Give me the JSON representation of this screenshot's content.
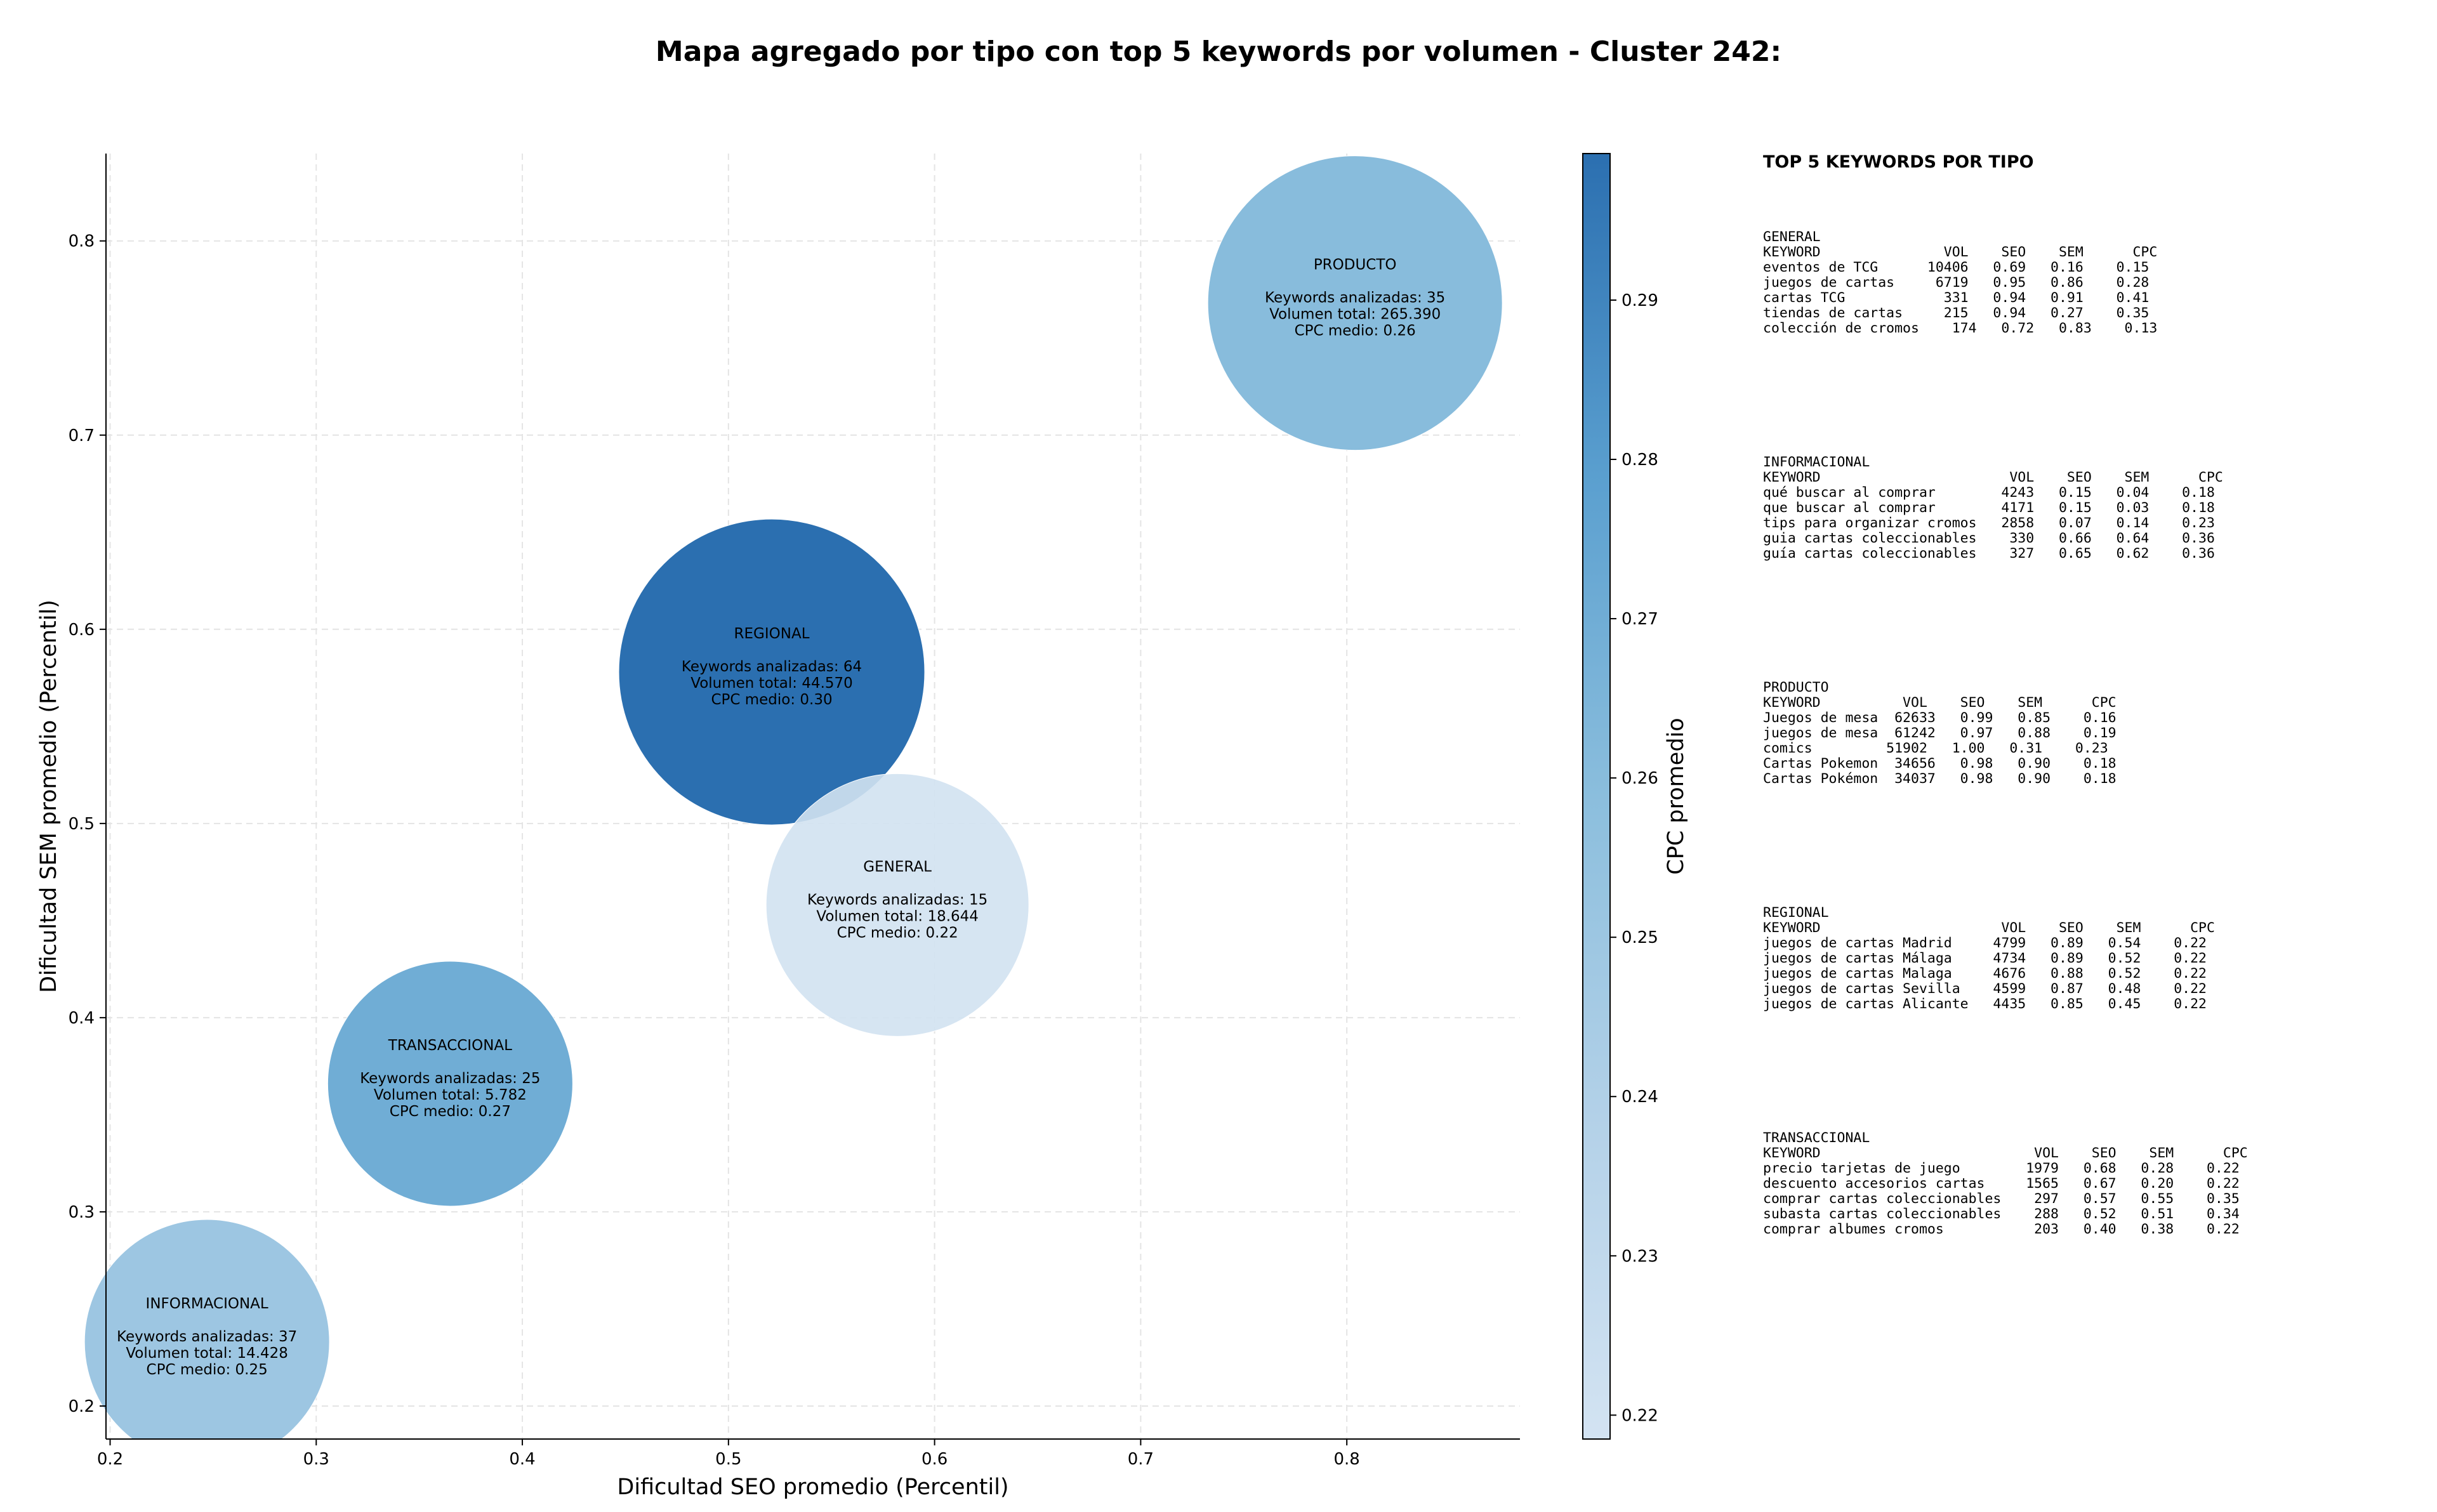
{
  "chart_data": {
    "type": "scatter",
    "title": "Mapa agregado por tipo con top 5 keywords por volumen - Cluster 242:",
    "xlabel": "Dificultad SEO promedio (Percentil)",
    "ylabel": "Dificultad SEM promedio (Percentil)",
    "xlim": [
      0.198,
      0.884
    ],
    "ylim": [
      0.183,
      0.845
    ],
    "xticks": [
      0.2,
      0.3,
      0.4,
      0.5,
      0.6,
      0.7,
      0.8
    ],
    "yticks": [
      0.2,
      0.3,
      0.4,
      0.5,
      0.6,
      0.7,
      0.8
    ],
    "grid": true,
    "colorbar": {
      "label": "CPC promedio",
      "range": [
        0.2185,
        0.2992
      ],
      "ticks": [
        0.22,
        0.23,
        0.24,
        0.25,
        0.26,
        0.27,
        0.28,
        0.29
      ]
    },
    "points": [
      {
        "name": "PRODUCTO",
        "x": 0.804,
        "y": 0.768,
        "cpc": 0.26,
        "lines": [
          "Keywords analizadas: 35",
          "Volumen total: 265.390",
          "CPC medio: 0.26"
        ]
      },
      {
        "name": "REGIONAL",
        "x": 0.521,
        "y": 0.578,
        "cpc": 0.3,
        "lines": [
          "Keywords analizadas: 64",
          "Volumen total: 44.570",
          "CPC medio: 0.30"
        ]
      },
      {
        "name": "GENERAL",
        "x": 0.582,
        "y": 0.458,
        "cpc": 0.22,
        "lines": [
          "Keywords analizadas: 15",
          "Volumen total: 18.644",
          "CPC medio: 0.22"
        ]
      },
      {
        "name": "TRANSACCIONAL",
        "x": 0.365,
        "y": 0.366,
        "cpc": 0.27,
        "lines": [
          "Keywords analizadas: 25",
          "Volumen total: 5.782",
          "CPC medio: 0.27"
        ]
      },
      {
        "name": "INFORMACIONAL",
        "x": 0.247,
        "y": 0.233,
        "cpc": 0.25,
        "lines": [
          "Keywords analizadas: 37",
          "Volumen total: 14.428",
          "CPC medio: 0.25"
        ]
      }
    ]
  },
  "panel": {
    "title": "TOP 5 KEYWORDS POR TIPO",
    "blocks": [
      {
        "name": "GENERAL",
        "kw_width": 18,
        "header": [
          "KEYWORD",
          "VOL",
          "SEO",
          "SEM",
          "CPC"
        ],
        "rows": [
          [
            "eventos de TCG",
            "10406",
            "0.69",
            "0.16",
            "0.15"
          ],
          [
            "juegos de cartas",
            "6719",
            "0.95",
            "0.86",
            "0.28"
          ],
          [
            "cartas TCG",
            "331",
            "0.94",
            "0.91",
            "0.41"
          ],
          [
            "tiendas de cartas",
            "215",
            "0.94",
            "0.27",
            "0.35"
          ],
          [
            "colección de cromos",
            "174",
            "0.72",
            "0.83",
            "0.13"
          ]
        ]
      },
      {
        "name": "INFORMACIONAL",
        "kw_width": 26,
        "header": [
          "KEYWORD",
          "VOL",
          "SEO",
          "SEM",
          "CPC"
        ],
        "rows": [
          [
            "qué buscar al comprar",
            "4243",
            "0.15",
            "0.04",
            "0.18"
          ],
          [
            "que buscar al comprar",
            "4171",
            "0.15",
            "0.03",
            "0.18"
          ],
          [
            "tips para organizar cromos",
            "2858",
            "0.07",
            "0.14",
            "0.23"
          ],
          [
            "guia cartas coleccionables",
            "330",
            "0.66",
            "0.64",
            "0.36"
          ],
          [
            "guía cartas coleccionables",
            "327",
            "0.65",
            "0.62",
            "0.36"
          ]
        ]
      },
      {
        "name": "PRODUCTO",
        "kw_width": 13,
        "header": [
          "KEYWORD",
          "VOL",
          "SEO",
          "SEM",
          "CPC"
        ],
        "rows": [
          [
            "Juegos de mesa",
            "62633",
            "0.99",
            "0.85",
            "0.16"
          ],
          [
            "juegos de mesa",
            "61242",
            "0.97",
            "0.88",
            "0.19"
          ],
          [
            "comics",
            "51902",
            "1.00",
            "0.31",
            "0.23"
          ],
          [
            "Cartas Pokemon",
            "34656",
            "0.98",
            "0.90",
            "0.18"
          ],
          [
            "Cartas Pokémon",
            "34037",
            "0.98",
            "0.90",
            "0.18"
          ]
        ]
      },
      {
        "name": "REGIONAL",
        "kw_width": 25,
        "header": [
          "KEYWORD",
          "VOL",
          "SEO",
          "SEM",
          "CPC"
        ],
        "rows": [
          [
            "juegos de cartas Madrid",
            "4799",
            "0.89",
            "0.54",
            "0.22"
          ],
          [
            "juegos de cartas Málaga",
            "4734",
            "0.89",
            "0.52",
            "0.22"
          ],
          [
            "juegos de cartas Malaga",
            "4676",
            "0.88",
            "0.52",
            "0.22"
          ],
          [
            "juegos de cartas Sevilla",
            "4599",
            "0.87",
            "0.48",
            "0.22"
          ],
          [
            "juegos de cartas Alicante",
            "4435",
            "0.85",
            "0.45",
            "0.22"
          ]
        ]
      },
      {
        "name": "TRANSACCIONAL",
        "kw_width": 29,
        "header": [
          "KEYWORD",
          "VOL",
          "SEO",
          "SEM",
          "CPC"
        ],
        "rows": [
          [
            "precio tarjetas de juego",
            "1979",
            "0.68",
            "0.28",
            "0.22"
          ],
          [
            "descuento accesorios cartas",
            "1565",
            "0.67",
            "0.20",
            "0.22"
          ],
          [
            "comprar cartas coleccionables",
            "297",
            "0.57",
            "0.55",
            "0.35"
          ],
          [
            "subasta cartas coleccionables",
            "288",
            "0.52",
            "0.51",
            "0.34"
          ],
          [
            "comprar albumes cromos",
            "203",
            "0.40",
            "0.38",
            "0.22"
          ]
        ]
      }
    ]
  }
}
